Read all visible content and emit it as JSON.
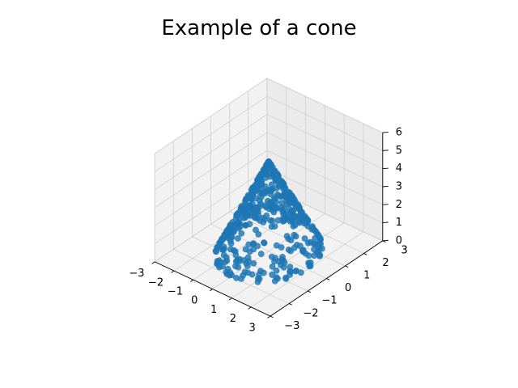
{
  "chart_data": {
    "type": "scatter",
    "projection": "3d",
    "title": "Example of a cone",
    "xlabel": "",
    "ylabel": "",
    "zlabel": "",
    "xlim": [
      -3,
      3
    ],
    "ylim": [
      -3,
      3
    ],
    "zlim": [
      0,
      6
    ],
    "x_ticks": [
      -3,
      -2,
      -1,
      0,
      1,
      2,
      3
    ],
    "y_ticks": [
      -3,
      -2,
      -1,
      0,
      1,
      2,
      3
    ],
    "z_ticks": [
      0,
      1,
      2,
      3,
      4,
      5,
      6
    ],
    "x_tick_labels": [
      "−3",
      "−2",
      "−1",
      "0",
      "1",
      "2",
      "3"
    ],
    "y_tick_labels": [
      "−3",
      "−2",
      "−1",
      "0",
      "1",
      "2",
      "3"
    ],
    "z_tick_labels": [
      "0",
      "1",
      "2",
      "3",
      "4",
      "5",
      "6"
    ],
    "grid": true,
    "marker_color": "#1f77b4",
    "point_count": 500,
    "shape": {
      "surface": "cone",
      "apex_height": 5,
      "base_radius": 2,
      "relation": "z = 5 - 2.5 * sqrt(x^2 + y^2)"
    }
  }
}
